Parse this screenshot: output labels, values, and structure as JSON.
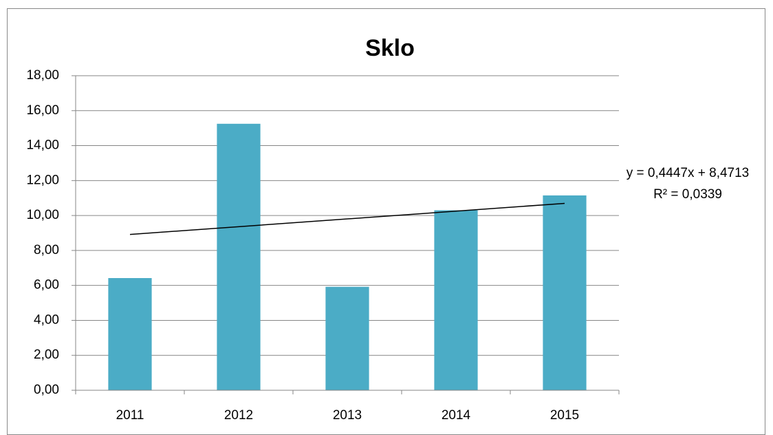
{
  "chart_data": {
    "type": "bar",
    "title": "Sklo",
    "categories": [
      "2011",
      "2012",
      "2013",
      "2014",
      "2015"
    ],
    "values": [
      6.42,
      15.25,
      5.92,
      10.3,
      11.15
    ],
    "color": "#4bacc6",
    "ylim": [
      0,
      18
    ],
    "yticks": [
      {
        "value": 0,
        "label": "0,00"
      },
      {
        "value": 2,
        "label": "2,00"
      },
      {
        "value": 4,
        "label": "4,00"
      },
      {
        "value": 6,
        "label": "6,00"
      },
      {
        "value": 8,
        "label": "8,00"
      },
      {
        "value": 10,
        "label": "10,00"
      },
      {
        "value": 12,
        "label": "12,00"
      },
      {
        "value": 14,
        "label": "14,00"
      },
      {
        "value": 16,
        "label": "16,00"
      },
      {
        "value": 18,
        "label": "18,00"
      }
    ],
    "grid": true,
    "trendline": {
      "slope": 0.4447,
      "intercept": 8.4713,
      "label": "y = 0,4447x + 8,4713",
      "r2_label": "R² = 0,0339"
    }
  }
}
